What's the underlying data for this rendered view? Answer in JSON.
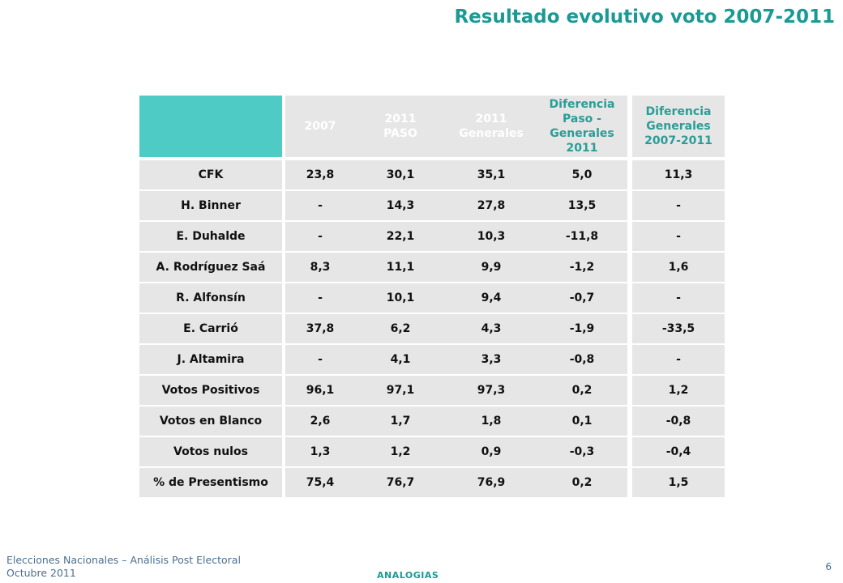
{
  "title": "Resultado evolutivo voto 2007-2011",
  "table": {
    "headers": [
      "2007",
      "2011\nPASO",
      "2011\nGenerales",
      "Diferencia\nPaso -\nGenerales\n2011",
      "Diferencia\nGenerales\n2007-2011"
    ],
    "rows": [
      {
        "label": "CFK",
        "values": [
          "23,8",
          "30,1",
          "35,1",
          "5,0",
          "11,3"
        ]
      },
      {
        "label": "H. Binner",
        "values": [
          "-",
          "14,3",
          "27,8",
          "13,5",
          "-"
        ]
      },
      {
        "label": "E. Duhalde",
        "values": [
          "-",
          "22,1",
          "10,3",
          "-11,8",
          "-"
        ]
      },
      {
        "label": "A. Rodríguez Saá",
        "values": [
          "8,3",
          "11,1",
          "9,9",
          "-1,2",
          "1,6"
        ]
      },
      {
        "label": "R. Alfonsín",
        "values": [
          "-",
          "10,1",
          "9,4",
          "-0,7",
          "-"
        ]
      },
      {
        "label": "E. Carrió",
        "values": [
          "37,8",
          "6,2",
          "4,3",
          "-1,9",
          "-33,5"
        ]
      },
      {
        "label": "J. Altamira",
        "values": [
          "-",
          "4,1",
          "3,3",
          "-0,8",
          "-"
        ]
      },
      {
        "label": "Votos Positivos",
        "values": [
          "96,1",
          "97,1",
          "97,3",
          "0,2",
          "1,2"
        ]
      },
      {
        "label": "Votos en Blanco",
        "values": [
          "2,6",
          "1,7",
          "1,8",
          "0,1",
          "-0,8"
        ]
      },
      {
        "label": "Votos nulos",
        "values": [
          "1,3",
          "1,2",
          "0,9",
          "-0,3",
          "-0,4"
        ]
      },
      {
        "label": "% de Presentismo",
        "values": [
          "75,4",
          "76,7",
          "76,9",
          "0,2",
          "1,5"
        ]
      }
    ]
  },
  "footer": {
    "line1": "Elecciones Nacionales – Análisis Post Electoral",
    "line2": "Octubre 2011",
    "brand": "ANALOGIAS",
    "page_number": "6"
  },
  "colors": {
    "accent": "#1a9a93",
    "header_corner": "#4ecbc4",
    "cell_bg": "#e6e6e6"
  }
}
